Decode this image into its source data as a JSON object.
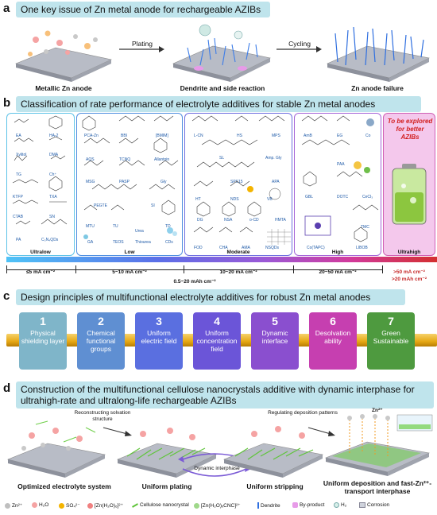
{
  "panel_a": {
    "letter": "a",
    "title": "One key issue of Zn metal anode for rechargeable AZIBs",
    "arrow1": "Plating",
    "arrow2": "Cycling",
    "stage1": "Metallic Zn anode",
    "stage2": "Dendrite and side reaction",
    "stage3": "Zn anode failure"
  },
  "panel_b": {
    "letter": "b",
    "title": "Classification of rate performance of electrolyte additives for stable Zn metal anodes",
    "categories": [
      {
        "name": "Ultralow",
        "range": "≤5 mA cm⁻²"
      },
      {
        "name": "Low",
        "range": "5~10 mA cm⁻²"
      },
      {
        "name": "Moderate",
        "range": "10~20 mA cm⁻²"
      },
      {
        "name": "High",
        "range": "20~50 mA cm⁻²"
      },
      {
        "name": "Ultrahigh",
        "range": ">50 mA cm⁻²",
        "range2": ">20 mAh cm⁻²"
      }
    ],
    "overall_range": "0.5~20 mAh cm⁻²",
    "future_text": "To be explored for better AZIBs",
    "ultralow_molecules": [
      "EA",
      "HA-2",
      "Xylitol",
      "DMA",
      "TG",
      "Ch⁺",
      "KTFP",
      "TXA",
      "CTAB",
      "SN",
      "PA",
      "C₃N₄QDs"
    ],
    "low_molecules": [
      "PCA-Zn",
      "BBI",
      "[BMIM]",
      "AQS",
      "TCNQ",
      "Allantoin",
      "MSG",
      "PASP",
      "Gly",
      "PEGTE",
      "SI",
      "MTU",
      "TU",
      "Urea",
      "TD",
      "GA",
      "TEOS",
      "Thiourea",
      "CDs"
    ],
    "moderate_molecules": [
      "L-CN",
      "HS",
      "MPS",
      "SL",
      "Amp. Gly",
      "SPS15",
      "APA",
      "HT",
      "NDS",
      "VB",
      "DG",
      "NSA",
      "o-CD",
      "HMTA",
      "FOD",
      "CHA",
      "AMA",
      "NSQDs"
    ],
    "high_molecules": [
      "AmB",
      "EG",
      "Co",
      "PAA",
      "GBL",
      "DOTC",
      "CeCl₃",
      "TMC",
      "Co(TAPC)",
      "LIBOB"
    ]
  },
  "panel_c": {
    "letter": "c",
    "title": "Design principles of multifunctional electrolyte additives for robust Zn metal anodes",
    "principles": [
      {
        "num": "1",
        "text": "Physical shielding layer",
        "color": "#7fb5c9"
      },
      {
        "num": "2",
        "text": "Chemical functional groups",
        "color": "#5f8fd2"
      },
      {
        "num": "3",
        "text": "Uniform electric field",
        "color": "#5a6fe0"
      },
      {
        "num": "4",
        "text": "Uniform concentration field",
        "color": "#6b55d8"
      },
      {
        "num": "5",
        "text": "Dynamic interface",
        "color": "#8a4fcf"
      },
      {
        "num": "6",
        "text": "Desolvation ability",
        "color": "#c63fb0"
      },
      {
        "num": "7",
        "text": "Green Sustainable",
        "color": "#4e9a3f"
      }
    ]
  },
  "panel_d": {
    "letter": "d",
    "title": "Construction of the multifunctional cellulose nanocrystals additive with dynamic interphase for ultrahigh-rate and ultralong-life rechargeable AZIBs",
    "note1": "Reconstructing solvation structure",
    "note2": "Regulating deposition patterns",
    "note3": "Dynamic interphase",
    "ion_label": "Zn²⁺",
    "stage1": "Optimized electrolyte system",
    "stage2": "Uniform plating",
    "stage3": "Uniform stripping",
    "stage4": "Uniform deposition and fast-Zn²⁺-transport interphase",
    "legend": [
      "Zn²⁺",
      "H₂O",
      "SO₄²⁻",
      "[Zn(H₂O)₆]²⁺",
      "Cellulose nanocrystal",
      "[Zn(H₂O)ₓCNC]²⁺",
      "Dendrite",
      "By-product",
      "H₂",
      "Corrosion"
    ]
  }
}
